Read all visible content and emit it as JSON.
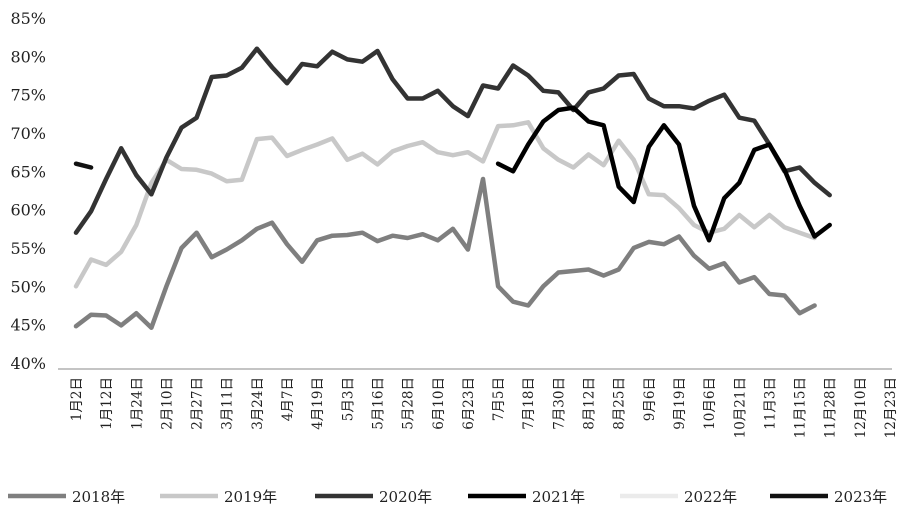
{
  "chart_data": {
    "type": "line",
    "ylim": [
      40,
      85
    ],
    "yticks": [
      "40%",
      "45%",
      "50%",
      "55%",
      "60%",
      "65%",
      "70%",
      "75%",
      "80%",
      "85%"
    ],
    "ytick_values": [
      40,
      45,
      50,
      55,
      60,
      65,
      70,
      75,
      80,
      85
    ],
    "x_tick_labels": [
      "1月2日",
      "1月12日",
      "1月24日",
      "2月10日",
      "2月27日",
      "3月11日",
      "3月24日",
      "4月7日",
      "4月19日",
      "5月3日",
      "5月16日",
      "5月28日",
      "6月10日",
      "6月23日",
      "7月5日",
      "7月18日",
      "7月30日",
      "8月12日",
      "8月25日",
      "9月6日",
      "9月19日",
      "10月6日",
      "10月21日",
      "11月3日",
      "11月15日",
      "11月28日",
      "12月10日",
      "12月23日"
    ],
    "x_points": 55,
    "grid": false,
    "legend_position": "bottom",
    "series": [
      {
        "name": "2018年",
        "color": "#7f7f7f",
        "values": [
          44.8,
          46.3,
          46.2,
          44.9,
          46.5,
          44.6,
          50.0,
          55.0,
          57.0,
          53.8,
          54.8,
          56.0,
          57.5,
          58.3,
          55.5,
          53.2,
          56.0,
          56.6,
          56.7,
          57.0,
          55.9,
          56.6,
          56.3,
          56.8,
          56.0,
          57.5,
          54.8,
          64.0,
          50.0,
          48.0,
          47.5,
          50.0,
          51.8,
          52.0,
          52.2,
          51.4,
          52.2,
          55.0,
          55.8,
          55.5,
          56.5,
          54.0,
          52.3,
          53.0,
          50.5,
          51.2,
          49.0,
          48.8,
          46.5,
          47.5,
          null,
          null,
          null,
          null,
          null
        ]
      },
      {
        "name": "2019年",
        "color": "#c8c8c8",
        "values": [
          50.0,
          53.5,
          52.8,
          54.5,
          58.0,
          63.5,
          66.5,
          65.3,
          65.2,
          64.7,
          63.7,
          63.9,
          69.2,
          69.4,
          67.0,
          67.8,
          68.5,
          69.3,
          66.5,
          67.3,
          65.9,
          67.6,
          68.3,
          68.8,
          67.5,
          67.1,
          67.5,
          66.3,
          70.9,
          71.0,
          71.4,
          68.0,
          66.5,
          65.5,
          67.2,
          65.8,
          69.0,
          66.5,
          62.0,
          61.9,
          60.2,
          58.0,
          57.0,
          57.5,
          59.3,
          57.7,
          59.3,
          57.7,
          57.0,
          56.3,
          null,
          null,
          null,
          null,
          null
        ]
      },
      {
        "name": "2020年",
        "color": "#333333",
        "values": [
          57.0,
          59.8,
          64.0,
          68.0,
          64.5,
          62.0,
          66.8,
          70.7,
          72.0,
          77.3,
          77.5,
          78.5,
          81.0,
          78.6,
          76.5,
          79.0,
          78.7,
          80.6,
          79.6,
          79.3,
          80.7,
          77.0,
          74.5,
          74.5,
          75.5,
          73.5,
          72.2,
          76.2,
          75.8,
          78.8,
          77.5,
          75.5,
          75.3,
          73.0,
          75.3,
          75.8,
          77.5,
          77.7,
          74.5,
          73.5,
          73.5,
          73.2,
          74.2,
          75.0,
          72.0,
          71.6,
          68.5,
          65.0,
          65.5,
          63.5,
          61.9,
          null,
          null,
          null,
          null
        ]
      },
      {
        "name": "2021年",
        "color": "#000000",
        "values": [
          null,
          null,
          null,
          null,
          null,
          null,
          null,
          null,
          null,
          null,
          null,
          null,
          null,
          null,
          null,
          null,
          null,
          null,
          null,
          null,
          null,
          null,
          null,
          null,
          null,
          null,
          null,
          null,
          66.0,
          65.0,
          68.5,
          71.5,
          73.0,
          73.3,
          71.5,
          71.0,
          63.0,
          61.0,
          68.2,
          71.0,
          68.5,
          60.5,
          56.0,
          61.5,
          63.5,
          67.8,
          68.5,
          65.2,
          60.5,
          56.5,
          58.0,
          null,
          null,
          null,
          null
        ]
      },
      {
        "name": "2022年",
        "color": "#ebebeb",
        "values": [
          null,
          null,
          null,
          null,
          null,
          null,
          null,
          null,
          null,
          null,
          null,
          null,
          null,
          null,
          null,
          null,
          null,
          null,
          null,
          null,
          null,
          null,
          null,
          null,
          null,
          null,
          null,
          null,
          null,
          null,
          null,
          null,
          null,
          null,
          null,
          null,
          null,
          null,
          null,
          null,
          null,
          null,
          null,
          null,
          null,
          null,
          null,
          null,
          null,
          null,
          null,
          null,
          null,
          null,
          null
        ]
      },
      {
        "name": "2023年",
        "color": "#111111",
        "values": [
          66.0,
          65.5,
          null,
          null,
          null,
          null,
          null,
          null,
          null,
          null,
          null,
          null,
          null,
          null,
          null,
          null,
          null,
          null,
          null,
          null,
          null,
          null,
          null,
          null,
          null,
          null,
          null,
          null,
          null,
          null,
          null,
          null,
          null,
          null,
          null,
          null,
          null,
          null,
          null,
          null,
          null,
          null,
          null,
          null,
          null,
          null,
          null,
          null,
          null,
          null,
          null,
          null,
          null,
          null,
          null
        ]
      }
    ]
  }
}
